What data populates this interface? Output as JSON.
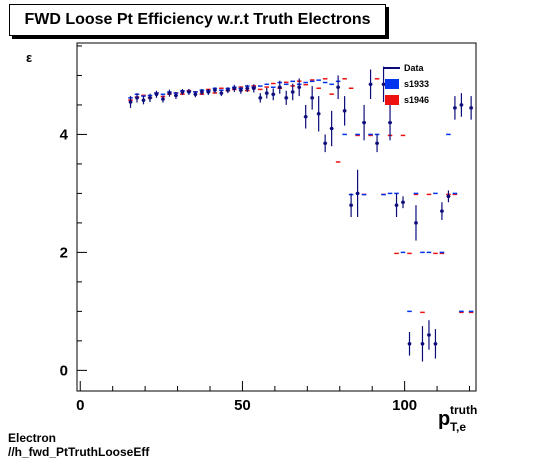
{
  "chart_data": {
    "type": "scatter",
    "title": "FWD Loose Pt Efficiency w.r.t Truth Electrons",
    "xlabel_main": "p",
    "xlabel_sup": "truth",
    "xlabel_sub": "T,e",
    "ylabel": "ε",
    "xlim": [
      -1,
      122
    ],
    "ylim": [
      -0.35,
      5.55
    ],
    "x_ticks": [
      0,
      50,
      100
    ],
    "y_ticks": [
      0,
      2,
      4
    ],
    "legend_position": "top-right",
    "legend": [
      {
        "name": "Data",
        "color": "#0b0b7a",
        "style": "line"
      },
      {
        "name": "s1933",
        "color": "#0033ee",
        "style": "box"
      },
      {
        "name": "s1946",
        "color": "#ee1111",
        "style": "box"
      }
    ],
    "series": [
      {
        "name": "Data",
        "color": "#0b0b7a",
        "points": [
          [
            15.5,
            4.55,
            0.1
          ],
          [
            17.5,
            4.62,
            0.08
          ],
          [
            19.5,
            4.58,
            0.07
          ],
          [
            21.5,
            4.62,
            0.07
          ],
          [
            23.5,
            4.68,
            0.06
          ],
          [
            25.5,
            4.6,
            0.06
          ],
          [
            27.5,
            4.7,
            0.06
          ],
          [
            29.5,
            4.66,
            0.06
          ],
          [
            31.5,
            4.72,
            0.05
          ],
          [
            33.5,
            4.72,
            0.05
          ],
          [
            35.5,
            4.68,
            0.05
          ],
          [
            37.5,
            4.72,
            0.05
          ],
          [
            39.5,
            4.72,
            0.05
          ],
          [
            41.5,
            4.75,
            0.05
          ],
          [
            43.5,
            4.7,
            0.05
          ],
          [
            45.5,
            4.75,
            0.05
          ],
          [
            47.5,
            4.78,
            0.06
          ],
          [
            49.5,
            4.75,
            0.06
          ],
          [
            51.5,
            4.78,
            0.06
          ],
          [
            53.5,
            4.78,
            0.07
          ],
          [
            55.5,
            4.62,
            0.08
          ],
          [
            57.5,
            4.7,
            0.09
          ],
          [
            59.5,
            4.68,
            0.1
          ],
          [
            61.5,
            4.8,
            0.11
          ],
          [
            63.5,
            4.62,
            0.12
          ],
          [
            65.5,
            4.72,
            0.14
          ],
          [
            67.5,
            4.8,
            0.15
          ],
          [
            69.5,
            4.3,
            0.2
          ],
          [
            71.5,
            4.62,
            0.2
          ],
          [
            73.5,
            4.35,
            0.3
          ],
          [
            75.5,
            3.85,
            0.15
          ],
          [
            77.5,
            4.1,
            0.3
          ],
          [
            79.5,
            4.8,
            0.2
          ],
          [
            81.5,
            4.4,
            0.25
          ],
          [
            83.5,
            2.8,
            0.2
          ],
          [
            85.5,
            3.0,
            0.4
          ],
          [
            87.5,
            4.2,
            0.3
          ],
          [
            89.5,
            4.85,
            0.25
          ],
          [
            91.5,
            3.85,
            0.15
          ],
          [
            93.5,
            4.85,
            0.3
          ],
          [
            95.5,
            4.2,
            0.3
          ],
          [
            97.5,
            2.8,
            0.2
          ],
          [
            99.5,
            2.85,
            0.1
          ],
          [
            101.5,
            0.45,
            0.2
          ],
          [
            103.5,
            2.5,
            0.3
          ],
          [
            105.5,
            0.45,
            0.3
          ],
          [
            107.5,
            0.6,
            0.25
          ],
          [
            109.5,
            0.45,
            0.25
          ],
          [
            111.5,
            2.7,
            0.15
          ],
          [
            113.5,
            2.95,
            0.1
          ],
          [
            115.5,
            4.45,
            0.2
          ],
          [
            117.5,
            4.5,
            0.2
          ],
          [
            120.5,
            4.45,
            0.2
          ]
        ]
      },
      {
        "name": "s1933",
        "color": "#0033ee",
        "points": [
          [
            15.5,
            4.62
          ],
          [
            17.5,
            4.68
          ],
          [
            19.5,
            4.65
          ],
          [
            21.5,
            4.66
          ],
          [
            23.5,
            4.7
          ],
          [
            25.5,
            4.68
          ],
          [
            27.5,
            4.72
          ],
          [
            29.5,
            4.7
          ],
          [
            31.5,
            4.74
          ],
          [
            33.5,
            4.73
          ],
          [
            35.5,
            4.72
          ],
          [
            37.5,
            4.75
          ],
          [
            39.5,
            4.74
          ],
          [
            41.5,
            4.78
          ],
          [
            43.5,
            4.75
          ],
          [
            45.5,
            4.78
          ],
          [
            47.5,
            4.8
          ],
          [
            49.5,
            4.78
          ],
          [
            51.5,
            4.82
          ],
          [
            53.5,
            4.8
          ],
          [
            55.5,
            4.82
          ],
          [
            57.5,
            4.85
          ],
          [
            59.5,
            4.8
          ],
          [
            61.5,
            4.88
          ],
          [
            63.5,
            4.85
          ],
          [
            65.5,
            4.9
          ],
          [
            67.5,
            4.85
          ],
          [
            69.5,
            4.88
          ],
          [
            71.5,
            4.9
          ],
          [
            73.5,
            4.92
          ],
          [
            75.5,
            4.88
          ],
          [
            77.5,
            4.85
          ],
          [
            79.5,
            4.9
          ],
          [
            81.5,
            4.0
          ],
          [
            83.5,
            2.98
          ],
          [
            85.5,
            4.0
          ],
          [
            87.5,
            2.98
          ],
          [
            89.5,
            4.0
          ],
          [
            91.5,
            4.0
          ],
          [
            93.5,
            2.98
          ],
          [
            95.5,
            3.0
          ],
          [
            97.5,
            3.0
          ],
          [
            99.5,
            2.0
          ],
          [
            101.5,
            1.0
          ],
          [
            103.5,
            3.0
          ],
          [
            105.5,
            2.0
          ],
          [
            107.5,
            2.0
          ],
          [
            109.5,
            3.0
          ],
          [
            111.5,
            2.0
          ],
          [
            113.5,
            4.0
          ],
          [
            115.5,
            3.0
          ],
          [
            117.5,
            1.0
          ],
          [
            120.5,
            1.0
          ]
        ]
      },
      {
        "name": "s1946",
        "color": "#ee1111",
        "points": [
          [
            15.5,
            4.6
          ],
          [
            17.5,
            4.65
          ],
          [
            19.5,
            4.68
          ],
          [
            21.5,
            4.64
          ],
          [
            23.5,
            4.72
          ],
          [
            25.5,
            4.66
          ],
          [
            27.5,
            4.7
          ],
          [
            29.5,
            4.72
          ],
          [
            31.5,
            4.7
          ],
          [
            33.5,
            4.76
          ],
          [
            35.5,
            4.74
          ],
          [
            37.5,
            4.7
          ],
          [
            39.5,
            4.78
          ],
          [
            41.5,
            4.72
          ],
          [
            43.5,
            4.8
          ],
          [
            45.5,
            4.76
          ],
          [
            47.5,
            4.78
          ],
          [
            49.5,
            4.82
          ],
          [
            51.5,
            4.76
          ],
          [
            53.5,
            4.84
          ],
          [
            55.5,
            4.78
          ],
          [
            57.5,
            4.82
          ],
          [
            59.5,
            4.88
          ],
          [
            61.5,
            4.8
          ],
          [
            63.5,
            4.9
          ],
          [
            65.5,
            4.84
          ],
          [
            67.5,
            4.92
          ],
          [
            69.5,
            4.86
          ],
          [
            71.5,
            4.94
          ],
          [
            73.5,
            4.8
          ],
          [
            75.5,
            4.96
          ],
          [
            77.5,
            4.7
          ],
          [
            79.5,
            3.55
          ],
          [
            81.5,
            4.96
          ],
          [
            83.5,
            4.8
          ],
          [
            85.5,
            4.0
          ],
          [
            87.5,
            3.0
          ],
          [
            89.5,
            4.0
          ],
          [
            91.5,
            4.96
          ],
          [
            93.5,
            3.0
          ],
          [
            95.5,
            4.0
          ],
          [
            97.5,
            2.0
          ],
          [
            99.5,
            4.0
          ],
          [
            101.5,
            2.0
          ],
          [
            103.5,
            3.0
          ],
          [
            105.5,
            1.0
          ],
          [
            107.5,
            3.0
          ],
          [
            109.5,
            2.0
          ],
          [
            111.5,
            2.0
          ],
          [
            113.5,
            3.0
          ],
          [
            115.5,
            3.0
          ],
          [
            117.5,
            1.0
          ],
          [
            120.5,
            1.0
          ]
        ]
      }
    ]
  },
  "footer": {
    "line1": "Electron",
    "line2": "//h_fwd_PtTruthLooseEff"
  }
}
